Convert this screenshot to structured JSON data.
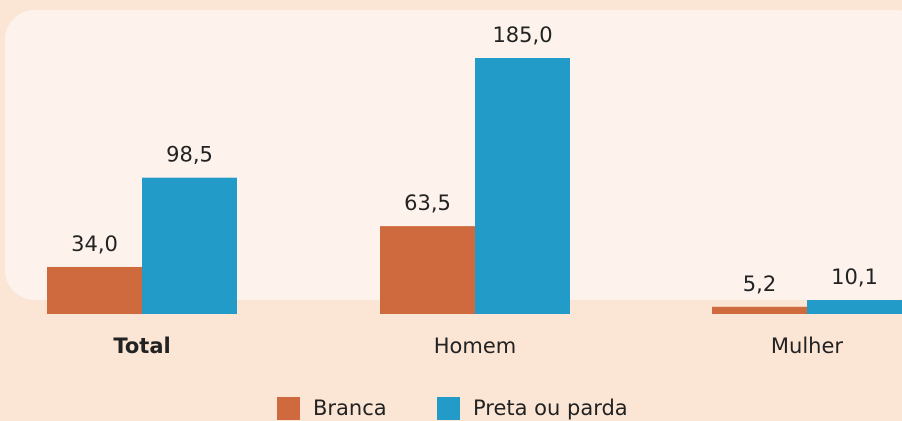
{
  "chart_data": {
    "type": "bar",
    "categories": [
      "Total",
      "Homem",
      "Mulher"
    ],
    "series": [
      {
        "name": "Branca",
        "color": "#cf6a3f",
        "values": [
          34.0,
          63.5,
          5.2
        ],
        "value_labels": [
          "34,0",
          "63,5",
          "5,2"
        ]
      },
      {
        "name": "Preta ou parda",
        "color": "#239bc8",
        "values": [
          98.5,
          185.0,
          10.1
        ],
        "value_labels": [
          "98,5",
          "185,0",
          "10,1"
        ]
      }
    ]
  }
}
